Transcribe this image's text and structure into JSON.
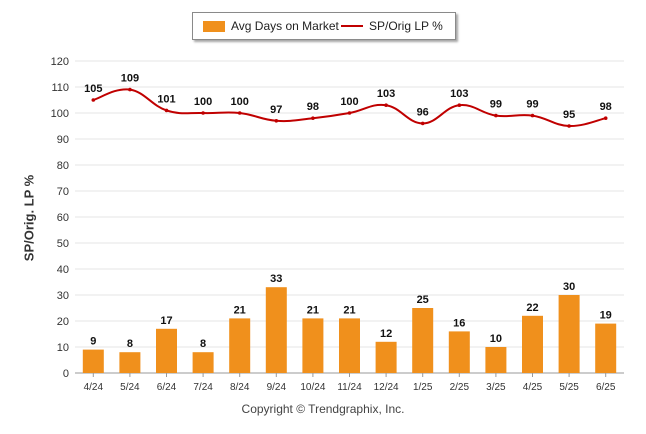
{
  "legend": {
    "bars_label": "Avg Days on Market",
    "line_label": "SP/Orig LP %"
  },
  "ylabel": "SP/Orig. LP %",
  "copyright": "Copyright © Trendgraphix, Inc.",
  "colors": {
    "bar": "#f0901c",
    "line": "#c00000",
    "grid": "#e6e6e6",
    "axis": "#999999"
  },
  "chart_data": {
    "type": "bar",
    "categories": [
      "4/24",
      "5/24",
      "6/24",
      "7/24",
      "8/24",
      "9/24",
      "10/24",
      "11/24",
      "12/24",
      "1/25",
      "2/25",
      "3/25",
      "4/25",
      "5/25",
      "6/25"
    ],
    "series": [
      {
        "name": "Avg Days on Market",
        "type": "bar",
        "values": [
          9,
          8,
          17,
          8,
          21,
          33,
          21,
          21,
          12,
          25,
          16,
          10,
          22,
          30,
          19
        ]
      },
      {
        "name": "SP/Orig LP %",
        "type": "line",
        "values": [
          105,
          109,
          101,
          100,
          100,
          97,
          98,
          100,
          103,
          96,
          103,
          99,
          99,
          95,
          98
        ]
      }
    ],
    "ylim": [
      0,
      120
    ],
    "yticks": [
      0,
      10,
      20,
      30,
      40,
      50,
      60,
      70,
      80,
      90,
      100,
      110,
      120
    ],
    "ylabel": "SP/Orig. LP %",
    "grid": true,
    "legend_position": "top-center"
  }
}
